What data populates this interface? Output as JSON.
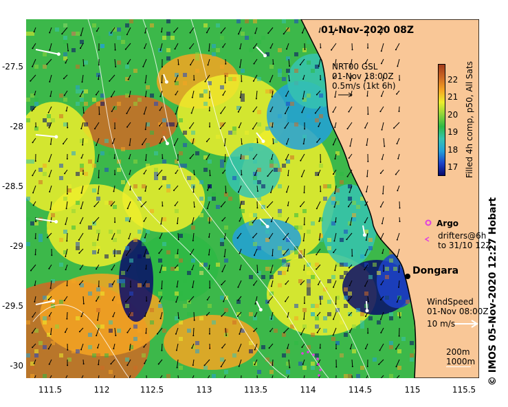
{
  "title": "01-Nov-2020 08Z",
  "current_legend": {
    "line1": "NRT00 GSL",
    "line2": "01-Nov 18:00Z",
    "line3": "0.5m/s (1kt 6h)"
  },
  "colorbar": {
    "label": "Filled 4h comp, p50, All Sats",
    "ticks": [
      "22",
      "21",
      "20",
      "19",
      "18",
      "17"
    ],
    "range": [
      16.5,
      22.8
    ],
    "colors": [
      "#080a6a",
      "#1d43c9",
      "#22a0d9",
      "#36c3b0",
      "#2db944",
      "#8fd43a",
      "#eded2c",
      "#f5a422",
      "#cf6a24",
      "#a33c1c"
    ]
  },
  "argo_legend": {
    "argo": "Argo",
    "drifters": "drifters@6h",
    "drifters_to": "to 31/10 12Z"
  },
  "place": "Dongara",
  "wind_legend": {
    "line1": "WindSpeed",
    "line2": "01-Nov 08:00Z",
    "line3": "10 m/s"
  },
  "depth_legend": {
    "d1": "200m",
    "d2": "1000m"
  },
  "credit": "© IMOS 05-Nov-2020 12:27 Hobart",
  "axes": {
    "lon_labels": [
      "111.5",
      "112",
      "112.5",
      "113",
      "113.5",
      "114",
      "114.5",
      "115",
      "115.5"
    ],
    "lat_labels": [
      "-27.5",
      "-28",
      "-28.5",
      "-29",
      "-29.5",
      "-30"
    ],
    "lon_range": [
      111.3,
      115.6
    ],
    "lat_range": [
      -27.1,
      -30.1
    ]
  },
  "colors": {
    "land": "#f9c797",
    "coast": "#000000",
    "current_arrows": "#000000",
    "wind_arrows": "#ffffff",
    "argo": "#e040e0",
    "bathymetry": "#ffffff"
  }
}
